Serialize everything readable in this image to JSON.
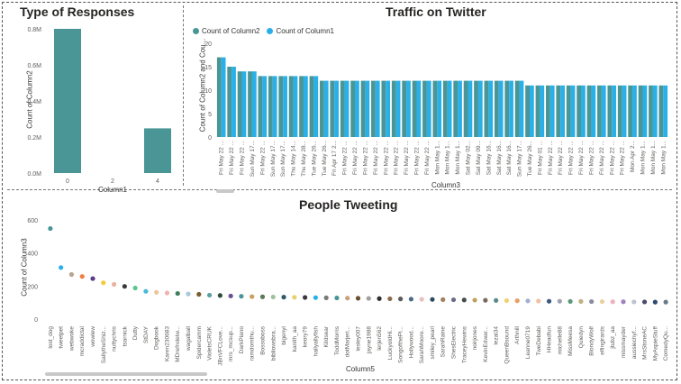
{
  "colors": {
    "teal": "#4a9595",
    "blue": "#2ab0e8"
  },
  "responses": {
    "title": "Type of Responses",
    "chart_data": {
      "type": "bar",
      "title": "Type of Responses",
      "xlabel": "Column1",
      "ylabel": "Count of Column2",
      "categories": [
        "0",
        "2",
        "4"
      ],
      "values": [
        800000,
        0,
        248000
      ],
      "ylim": [
        0,
        800000
      ],
      "yticks": [
        "0.0M",
        "0.2M",
        "0.4M",
        "0.6M",
        "0.8M"
      ]
    }
  },
  "twitter": {
    "title": "Traffic on Twitter",
    "legend": [
      "Count of Column2",
      "Count of Column1"
    ],
    "chart_data": {
      "type": "bar",
      "title": "Traffic on Twitter",
      "xlabel": "Column3",
      "ylabel": "Count of Column2 and Cou...",
      "ylim": [
        0,
        20
      ],
      "yticks": [
        "0",
        "5",
        "10",
        "15",
        "20"
      ],
      "categories": [
        "Fri May 22 ...",
        "Fri May 22 ...",
        "Fri May 22 ...",
        "Sun May 17...",
        "Fri May 22 ...",
        "Sun May 17...",
        "Sun May 17...",
        "Thu May 14...",
        "Thu May 28...",
        "Tue May 26...",
        "Tue May 26...",
        "Fri Apr 17 2...",
        "Fri May 22 ...",
        "Fri May 22 ...",
        "Fri May 22 ...",
        "Fri May 22 ...",
        "Fri May 22 ...",
        "Fri May 22 ...",
        "Fri May 22 ...",
        "Fri May 22 ...",
        "Fri May 22 ...",
        "Mon May 1...",
        "Mon May 1...",
        "Mon May 1...",
        "Sat May 02...",
        "Sat May 09...",
        "Sat May 16...",
        "Sat May 16...",
        "Sat May 16...",
        "Sun May 17...",
        "Tue May 26...",
        "Fri May 01 ...",
        "Fri May 22 ...",
        "Fri May 22 ...",
        "Fri May 22 ...",
        "Fri May 22 ...",
        "Fri May 22 ...",
        "Fri May 22 ...",
        "Fri May 22 ...",
        "Fri May 22 ...",
        "Mon Apr 2...",
        "Mon May 1...",
        "Mon May 1...",
        "Mon May 1..."
      ],
      "series": [
        {
          "name": "Count of Column2",
          "values": [
            17,
            15,
            14,
            14,
            13,
            13,
            13,
            13,
            13,
            13,
            12,
            12,
            12,
            12,
            12,
            12,
            12,
            12,
            12,
            12,
            12,
            12,
            12,
            12,
            12,
            12,
            12,
            12,
            12,
            12,
            11,
            11,
            11,
            11,
            11,
            11,
            11,
            11,
            11,
            11,
            11,
            11,
            11,
            11
          ]
        },
        {
          "name": "Count of Column1",
          "values": [
            17,
            15,
            14,
            14,
            13,
            13,
            13,
            13,
            13,
            13,
            12,
            12,
            12,
            12,
            12,
            12,
            12,
            12,
            12,
            12,
            12,
            12,
            12,
            12,
            12,
            12,
            12,
            12,
            12,
            12,
            11,
            11,
            11,
            11,
            11,
            11,
            11,
            11,
            11,
            11,
            11,
            11,
            11,
            11
          ]
        }
      ]
    }
  },
  "people": {
    "title": "People Tweeting",
    "chart_data": {
      "type": "scatter",
      "title": "People Tweeting",
      "xlabel": "Column5",
      "ylabel": "Count of Column3",
      "ylim": [
        0,
        600
      ],
      "yticks": [
        "0",
        "200",
        "400",
        "600"
      ],
      "categories": [
        "lost_dog",
        "tweetpet",
        "webwoke",
        "mcraddictal",
        "wowlew",
        "SallytheShiz...",
        "nuttychris",
        "tsarnick",
        "Dutty",
        "StDAY",
        "Dogbook",
        "Karen230683",
        "MDrefndelw...",
        "wagalball",
        "Spidercamm",
        "VioletsCRUK",
        "JBnVFCLove...",
        "mrs_mcsup...",
        "DarkPiano",
        "ramdomthu...",
        "Bossoboss",
        "bibliowsbra...",
        "bigenyi",
        "kanith_aa",
        "keory79",
        "hallyallyfish",
        "Kildsear",
        "ToddMorris",
        "dotMarjeri...",
        "lesley007",
        "jayne1988",
        "lerjen562",
        "LuckyoldHi...",
        "SongofthePi...",
        "Hollywood...",
        "SarahMoore...",
        "smiley_pearl",
        "SarahRaine",
        "ShesElectric",
        "TraceyHewins",
        "noirjones",
        "KevinEdwar...",
        "lezai34",
        "QueenBsound",
        "Arthnill",
        "Leanne0719",
        "TweDebabi",
        "HHeadfun",
        "michelle88",
        "MissMeesa",
        "Quiedyn",
        "BlondyWolf",
        "elfingirards",
        "jtubz_aa",
        "missmayder",
        "aussiechyf...",
        "MrsStoneAC",
        "MyAspieStuff",
        "ComedyQu..."
      ],
      "values": [
        548,
        312,
        270,
        258,
        245,
        220,
        210,
        198,
        188,
        168,
        162,
        158,
        155,
        152,
        150,
        145,
        143,
        140,
        138,
        136,
        135,
        134,
        133,
        132,
        131,
        130,
        129,
        128,
        127,
        126,
        125,
        124,
        123,
        122,
        121,
        120,
        119,
        118,
        117,
        116,
        115,
        114,
        113,
        112,
        111,
        110,
        109,
        108,
        108,
        107,
        107,
        106,
        106,
        105,
        105,
        104,
        104,
        103,
        103
      ],
      "colors": [
        "#4a9595",
        "#2ab0e8",
        "#b9a48f",
        "#f07e41",
        "#5b3a8a",
        "#f7c93c",
        "#e8b4a0",
        "#3a3a3a",
        "#5cc58f",
        "#4db8d8",
        "#e8c79a",
        "#f2b0b0",
        "#3d7f5a",
        "#a8c8e0",
        "#7a5c2e",
        "#5aa0a0",
        "#2e4a3d",
        "#6b5090",
        "#4a9595",
        "#c8a060",
        "#5a7a5a",
        "#a0c0a0",
        "#2e5a6b",
        "#e8d070",
        "#3a3a3a",
        "#2ab0e8",
        "#7a7a7a",
        "#4a9595",
        "#c8a080",
        "#6b5030",
        "#a0a0a0",
        "#2e2e2e",
        "#8a6a4a",
        "#5a5a5a",
        "#4a6a8a",
        "#e8c0c0",
        "#2e4a5a",
        "#a08060",
        "#6b6b8a",
        "#4a4a4a",
        "#c0a060",
        "#7a6a5a",
        "#5a8a8a",
        "#f0d070",
        "#e8a060",
        "#a0b0d0",
        "#f0c0a0",
        "#3a5a7a",
        "#a0a0b0",
        "#5a9a7a",
        "#c0b080",
        "#8a8aa0",
        "#e8d0a0",
        "#f0b0c0",
        "#a080c0",
        "#c0c0d0",
        "#4a4a6a",
        "#2e4a6b",
        "#6a7a8a"
      ]
    }
  }
}
